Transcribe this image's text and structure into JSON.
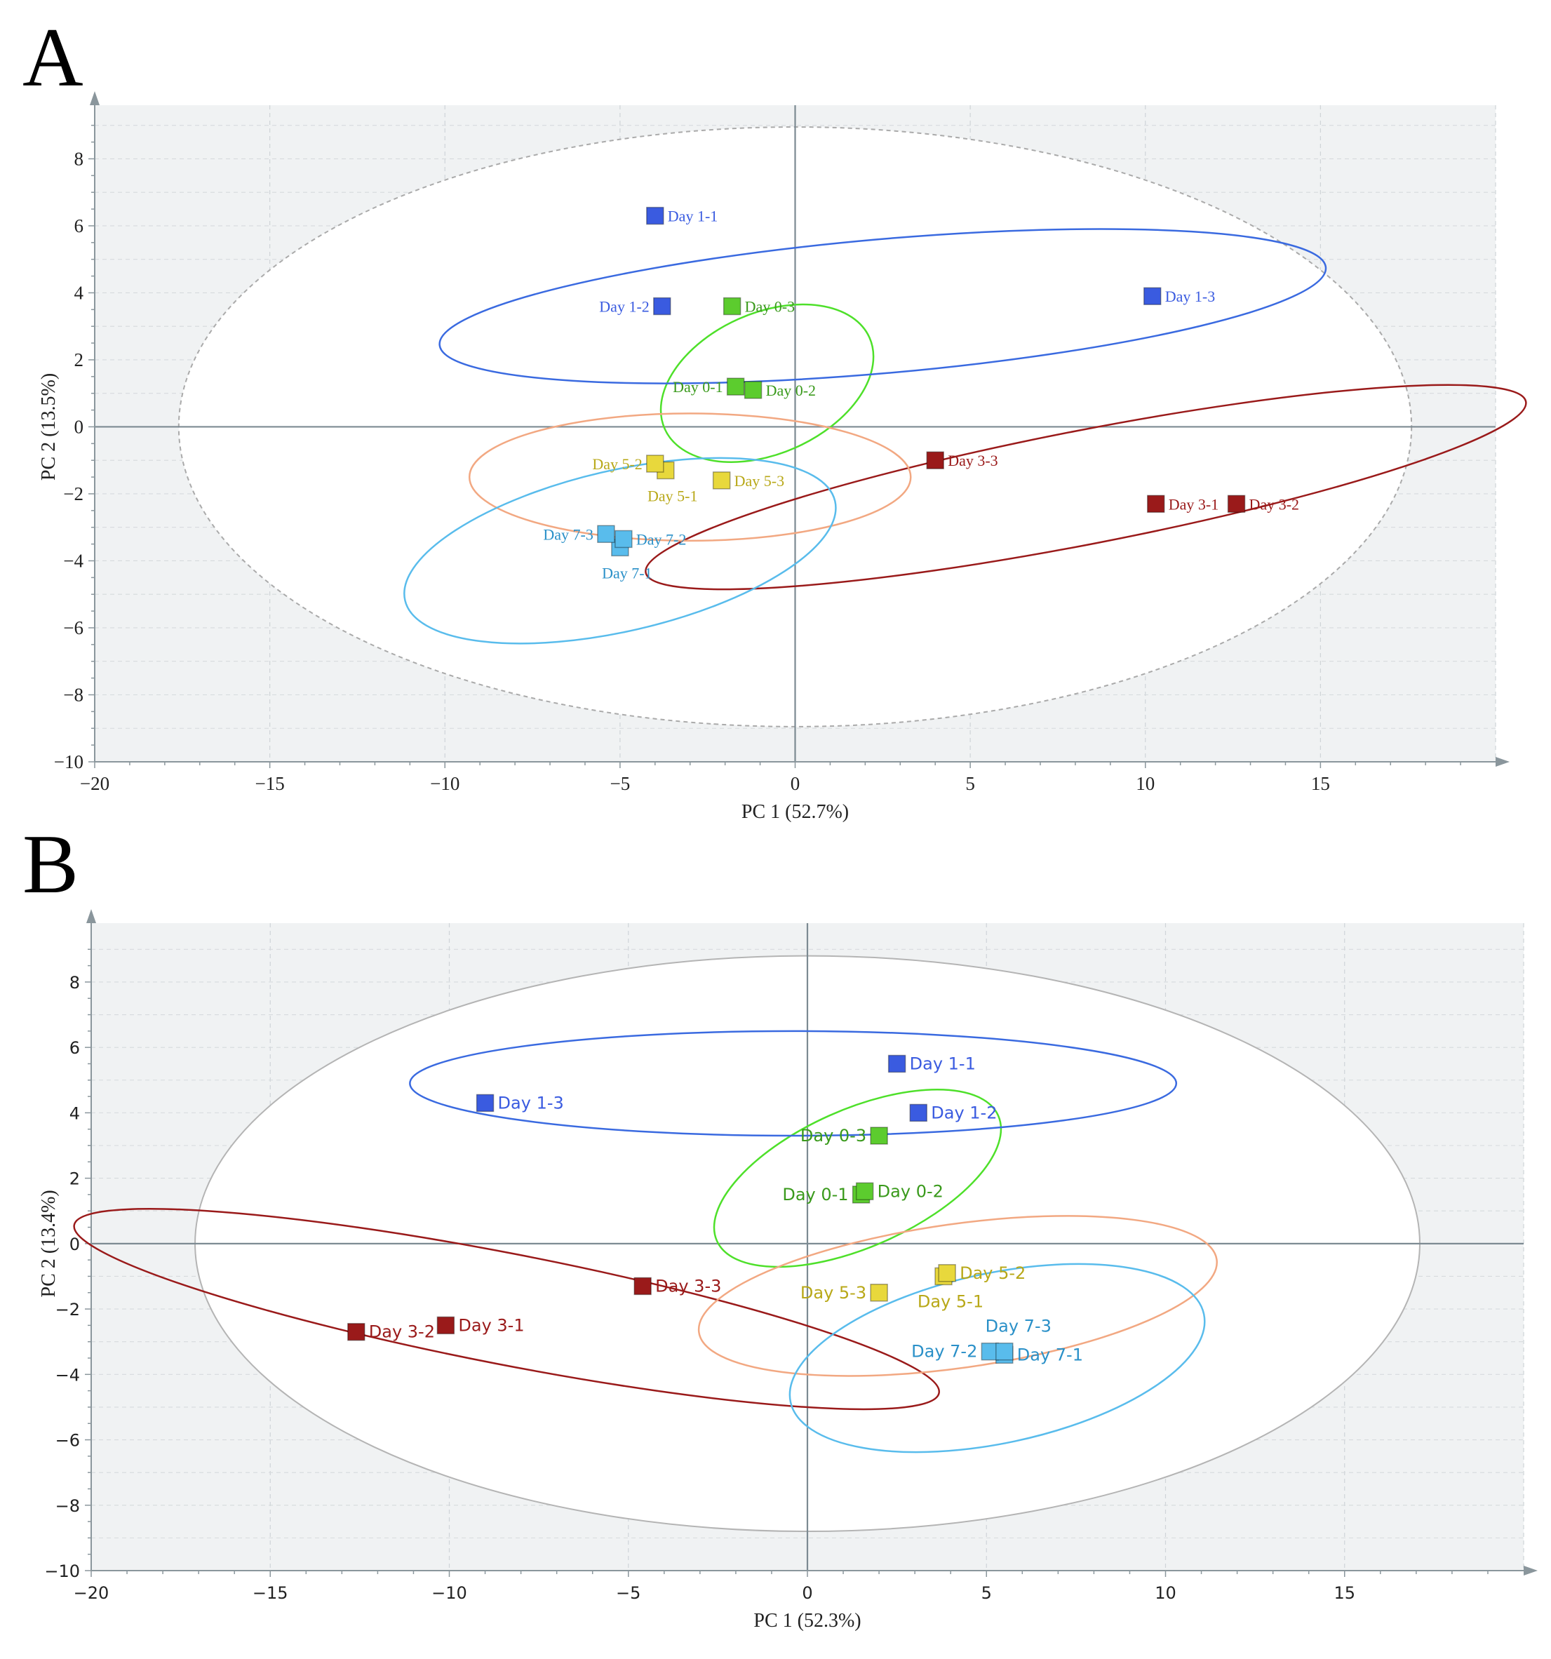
{
  "panels": [
    {
      "letter": "A",
      "font": "serif",
      "xlabel": "PC 1 (52.7%)",
      "ylabel": "PC 2 (13.5%)",
      "xticks": [
        "−20",
        "−15",
        "−10",
        "−5",
        "0",
        "5",
        "10",
        "15"
      ],
      "yticks": [
        "8",
        "6",
        "4",
        "2",
        "0",
        "−2",
        "−4",
        "−6",
        "−8",
        "−10"
      ]
    },
    {
      "letter": "B",
      "font": "sans",
      "xlabel": "PC 1 (52.3%)",
      "ylabel": "PC 2 (13.4%)",
      "xticks": [
        "−20",
        "−15",
        "−10",
        "−5",
        "0",
        "5",
        "10",
        "15"
      ],
      "yticks": [
        "8",
        "6",
        "4",
        "2",
        "0",
        "−2",
        "−4",
        "−6",
        "−8",
        "−10"
      ]
    }
  ],
  "chart_data": [
    {
      "type": "scatter",
      "title": "A",
      "xlabel": "PC 1 (52.7%)",
      "ylabel": "PC 2 (13.5%)",
      "xlim": [
        -20,
        20
      ],
      "ylim": [
        -10,
        9.6
      ],
      "xticks": [
        -20,
        -15,
        -10,
        -5,
        0,
        5,
        10,
        15
      ],
      "yticks": [
        -10,
        -8,
        -6,
        -4,
        -2,
        0,
        2,
        4,
        6,
        8
      ],
      "confidence_ellipse": {
        "cx": 0,
        "cy": 0,
        "rx": 17.6,
        "ry": 8.95,
        "angle": 0
      },
      "series": [
        {
          "name": "Day 0",
          "color": "#5ccc2e",
          "ellipse_color": "#4ee02a",
          "ellipse": {
            "cx": -0.8,
            "cy": 1.3,
            "rx": 3.2,
            "ry": 2.1,
            "angle": -24
          },
          "points": [
            {
              "label": "Day 0-1",
              "x": -1.7,
              "y": 1.2,
              "label_side": "left"
            },
            {
              "label": "Day 0-2",
              "x": -1.2,
              "y": 1.1,
              "label_side": "right"
            },
            {
              "label": "Day 0-3",
              "x": -1.8,
              "y": 3.6,
              "label_side": "right"
            }
          ]
        },
        {
          "name": "Day 1",
          "color": "#3a5be0",
          "ellipse_color": "#3a6ae0",
          "ellipse": {
            "cx": 2.5,
            "cy": 3.6,
            "rx": 12.7,
            "ry": 2.0,
            "angle": -5
          },
          "points": [
            {
              "label": "Day 1-1",
              "x": -4.0,
              "y": 6.3,
              "label_side": "right"
            },
            {
              "label": "Day 1-2",
              "x": -3.8,
              "y": 3.6,
              "label_side": "left"
            },
            {
              "label": "Day 1-3",
              "x": 10.2,
              "y": 3.9,
              "label_side": "right"
            }
          ]
        },
        {
          "name": "Day 3",
          "color": "#9a1a1a",
          "ellipse_color": "#9a1a1a",
          "ellipse": {
            "cx": 8.3,
            "cy": -1.8,
            "rx": 12.8,
            "ry": 1.7,
            "angle": -11
          },
          "points": [
            {
              "label": "Day 3-1",
              "x": 10.3,
              "y": -2.3,
              "label_side": "right"
            },
            {
              "label": "Day 3-2",
              "x": 12.6,
              "y": -2.3,
              "label_side": "right"
            },
            {
              "label": "Day 3-3",
              "x": 4.0,
              "y": -1.0,
              "label_side": "right"
            }
          ]
        },
        {
          "name": "Day 5",
          "color": "#e8d83c",
          "ellipse_color": "#f2a882",
          "ellipse": {
            "cx": -3.0,
            "cy": -1.5,
            "rx": 6.3,
            "ry": 1.9,
            "angle": 0
          },
          "points": [
            {
              "label": "Day 5-1",
              "x": -3.7,
              "y": -1.3,
              "label_side": "below"
            },
            {
              "label": "Day 5-2",
              "x": -4.0,
              "y": -1.1,
              "label_side": "left"
            },
            {
              "label": "Day 5-3",
              "x": -2.1,
              "y": -1.6,
              "label_side": "right"
            }
          ]
        },
        {
          "name": "Day 7",
          "color": "#59bcec",
          "ellipse_color": "#59bcec",
          "ellipse": {
            "cx": -5.0,
            "cy": -3.7,
            "rx": 6.3,
            "ry": 2.4,
            "angle": -13
          },
          "points": [
            {
              "label": "Day 7-1",
              "x": -5.0,
              "y": -3.6,
              "label_side": "below"
            },
            {
              "label": "Day 7-2",
              "x": -4.9,
              "y": -3.35,
              "label_side": "right"
            },
            {
              "label": "Day 7-3",
              "x": -5.4,
              "y": -3.2,
              "label_side": "left"
            }
          ]
        }
      ]
    },
    {
      "type": "scatter",
      "title": "B",
      "xlabel": "PC 1 (52.3%)",
      "ylabel": "PC 2 (13.4%)",
      "xlim": [
        -20,
        20
      ],
      "ylim": [
        -10,
        9.8
      ],
      "xticks": [
        -20,
        -15,
        -10,
        -5,
        0,
        5,
        10,
        15
      ],
      "yticks": [
        -10,
        -8,
        -6,
        -4,
        -2,
        0,
        2,
        4,
        6,
        8
      ],
      "confidence_ellipse": {
        "cx": 0,
        "cy": 0,
        "rx": 17.1,
        "ry": 8.8,
        "angle": 0
      },
      "series": [
        {
          "name": "Day 0",
          "color": "#5ccc2e",
          "ellipse_color": "#4ee02a",
          "ellipse": {
            "cx": 1.4,
            "cy": 2.0,
            "rx": 4.3,
            "ry": 2.1,
            "angle": -24
          },
          "points": [
            {
              "label": "Day 0-1",
              "x": 1.5,
              "y": 1.5,
              "label_side": "left"
            },
            {
              "label": "Day 0-2",
              "x": 1.6,
              "y": 1.6,
              "label_side": "right"
            },
            {
              "label": "Day 0-3",
              "x": 2.0,
              "y": 3.3,
              "label_side": "left"
            }
          ]
        },
        {
          "name": "Day 1",
          "color": "#3a5be0",
          "ellipse_color": "#3a6ae0",
          "ellipse": {
            "cx": -0.4,
            "cy": 4.9,
            "rx": 10.7,
            "ry": 1.6,
            "angle": 0
          },
          "points": [
            {
              "label": "Day 1-1",
              "x": 2.5,
              "y": 5.5,
              "label_side": "right"
            },
            {
              "label": "Day 1-2",
              "x": 3.1,
              "y": 4.0,
              "label_side": "right"
            },
            {
              "label": "Day 1-3",
              "x": -9.0,
              "y": 4.3,
              "label_side": "right"
            }
          ]
        },
        {
          "name": "Day 3",
          "color": "#9a1a1a",
          "ellipse_color": "#9a1a1a",
          "ellipse": {
            "cx": -8.4,
            "cy": -2.0,
            "rx": 12.3,
            "ry": 1.7,
            "angle": 11
          },
          "points": [
            {
              "label": "Day 3-1",
              "x": -10.1,
              "y": -2.5,
              "label_side": "right"
            },
            {
              "label": "Day 3-2",
              "x": -12.6,
              "y": -2.7,
              "label_side": "right"
            },
            {
              "label": "Day 3-3",
              "x": -4.6,
              "y": -1.3,
              "label_side": "right"
            }
          ]
        },
        {
          "name": "Day 5",
          "color": "#e8d83c",
          "ellipse_color": "#f2a882",
          "ellipse": {
            "cx": 4.2,
            "cy": -1.6,
            "rx": 7.3,
            "ry": 2.2,
            "angle": -8
          },
          "points": [
            {
              "label": "Day 5-1",
              "x": 3.8,
              "y": -1.0,
              "label_side": "below"
            },
            {
              "label": "Day 5-2",
              "x": 3.9,
              "y": -0.9,
              "label_side": "right"
            },
            {
              "label": "Day 5-3",
              "x": 2.0,
              "y": -1.5,
              "label_side": "left"
            }
          ]
        },
        {
          "name": "Day 7",
          "color": "#59bcec",
          "ellipse_color": "#59bcec",
          "ellipse": {
            "cx": 5.3,
            "cy": -3.5,
            "rx": 5.9,
            "ry": 2.6,
            "angle": -12
          },
          "points": [
            {
              "label": "Day 7-1",
              "x": 5.5,
              "y": -3.4,
              "label_side": "right"
            },
            {
              "label": "Day 7-2",
              "x": 5.1,
              "y": -3.3,
              "label_side": "left"
            },
            {
              "label": "Day 7-3",
              "x": 5.5,
              "y": -3.3,
              "label_side": "above"
            }
          ]
        }
      ]
    }
  ]
}
